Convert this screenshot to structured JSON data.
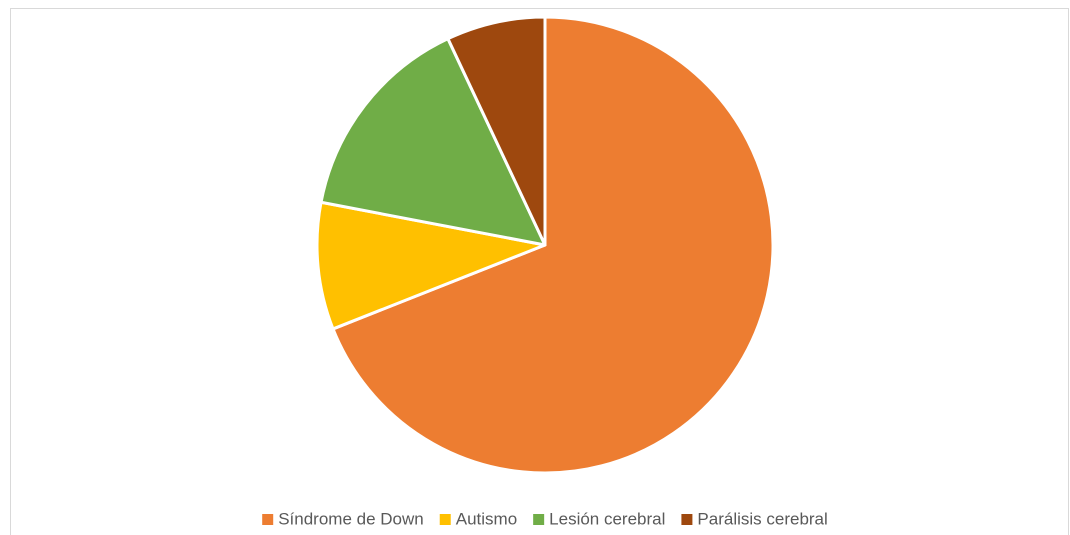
{
  "chart_data": {
    "type": "pie",
    "categories": [
      "Síndrome de Down",
      "Autismo",
      "Lesión cerebral",
      "Parálisis cerebral"
    ],
    "values": [
      69,
      9,
      15,
      7
    ],
    "colors": [
      "#ed7d31",
      "#ffc000",
      "#70ad47",
      "#9e480e"
    ],
    "legend": "bottom"
  }
}
